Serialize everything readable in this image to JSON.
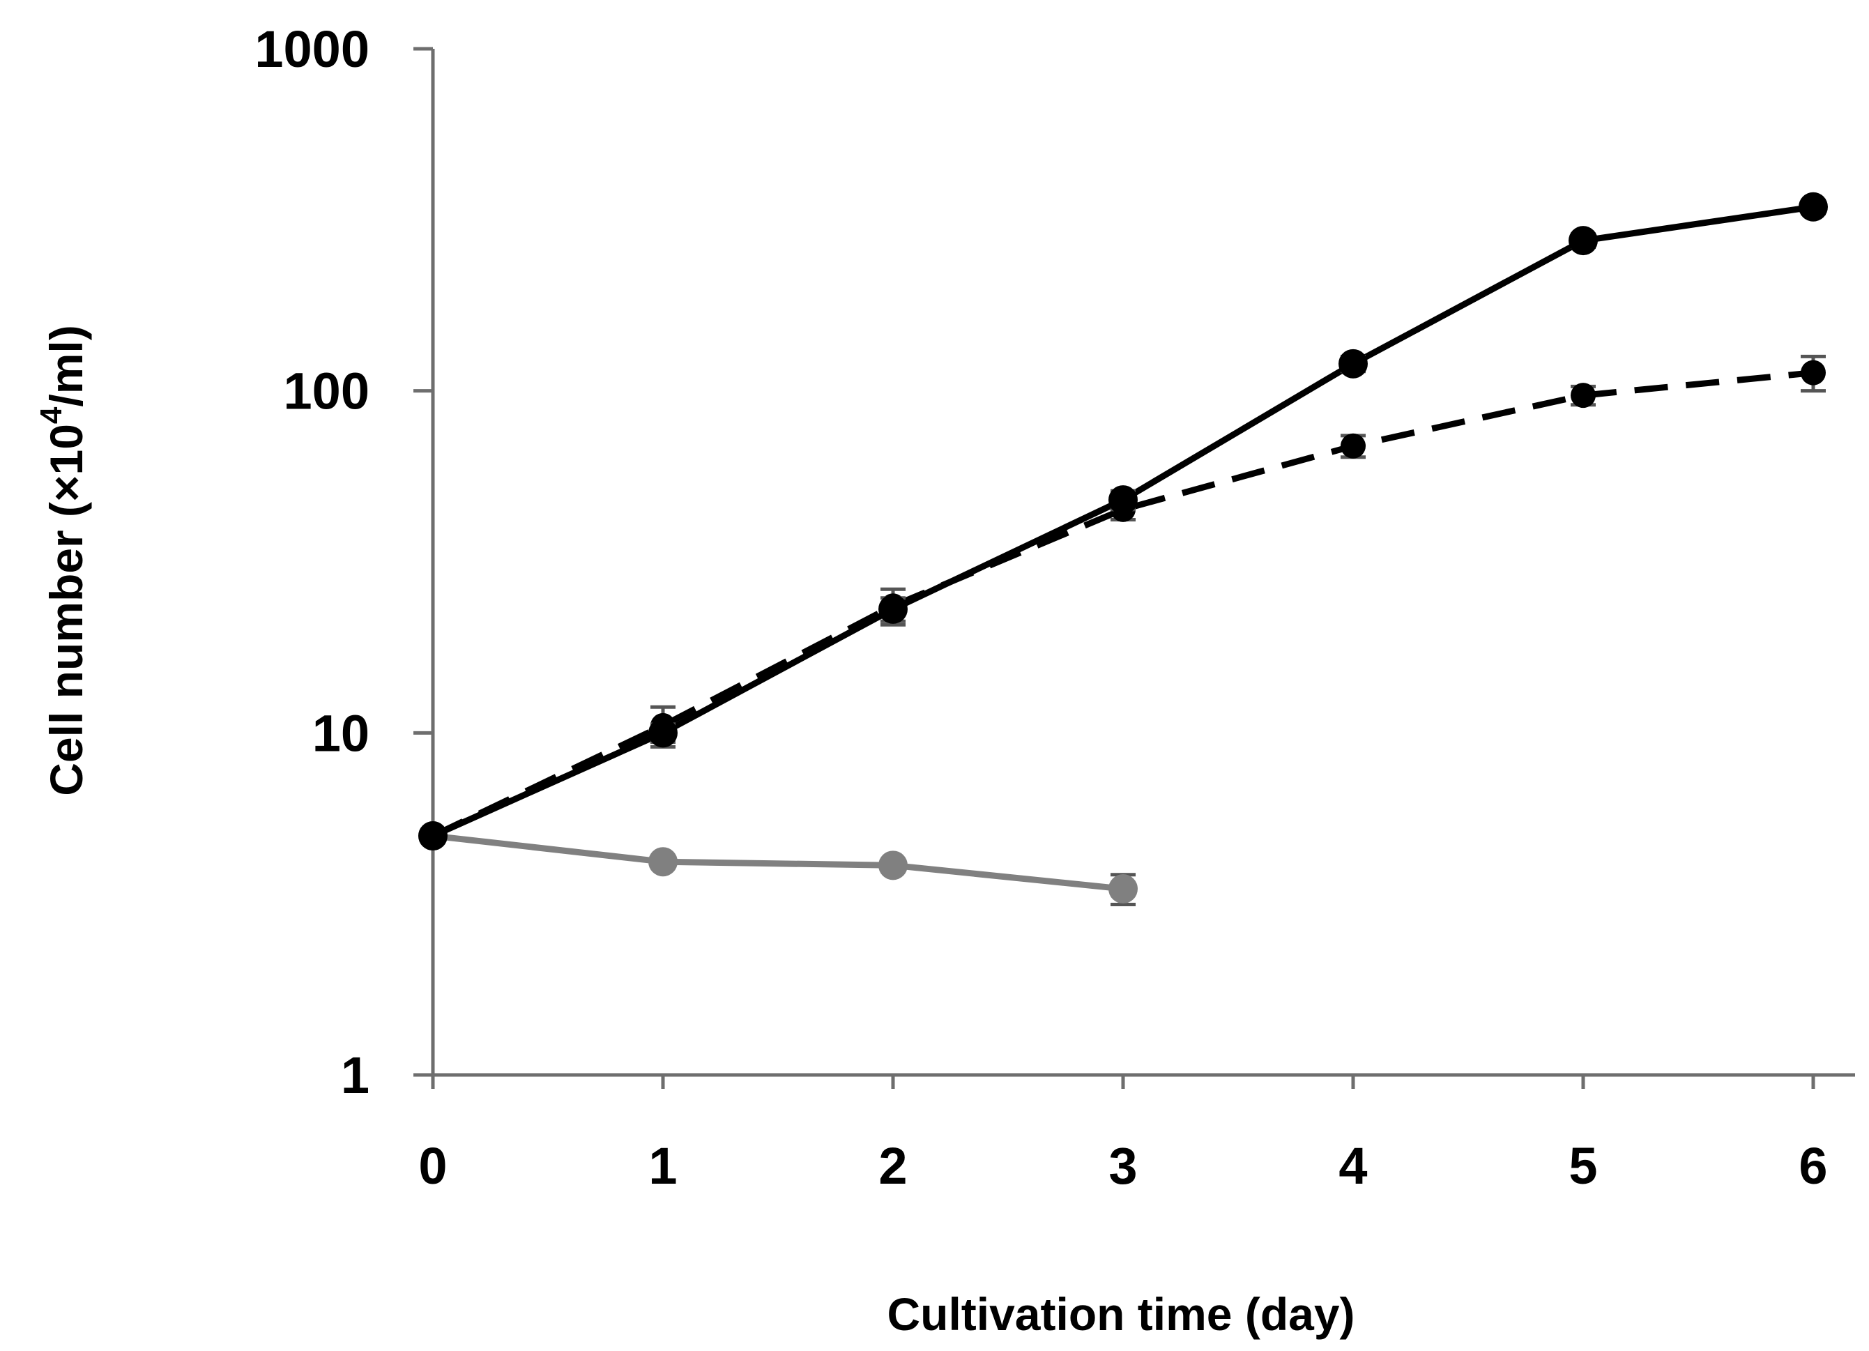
{
  "chart_data": {
    "type": "line",
    "title": "",
    "xlabel": "Cultivation time (day)",
    "ylabel": {
      "main": "Cell number (×10",
      "sup": "4",
      "tail": "/ml)"
    },
    "y_scale": "log",
    "xlim": [
      0,
      6
    ],
    "ylim": [
      1,
      1000
    ],
    "x_ticks": [
      "0",
      "1",
      "2",
      "3",
      "4",
      "5",
      "6"
    ],
    "y_ticks": [
      "1",
      "10",
      "100",
      "1000"
    ],
    "grid": false,
    "legend": "none",
    "series": [
      {
        "name": "solid-black",
        "style": "solid",
        "color": "#000000",
        "x": [
          0,
          1,
          2,
          3,
          4,
          5,
          6
        ],
        "values": [
          5,
          10,
          23,
          48,
          120,
          275,
          345
        ],
        "err": [
          0,
          0.6,
          1.8,
          3,
          6,
          12,
          15
        ]
      },
      {
        "name": "dashed-black",
        "style": "dashed",
        "color": "#000000",
        "x": [
          0,
          1,
          2,
          3,
          4,
          5,
          6
        ],
        "values": [
          5,
          10.5,
          23.5,
          45,
          69,
          97,
          113
        ],
        "err": [
          0,
          1.4,
          2.8,
          3,
          5,
          6,
          13
        ]
      },
      {
        "name": "solid-gray",
        "style": "solid",
        "color": "#808080",
        "x": [
          0,
          1,
          2,
          3
        ],
        "values": [
          5,
          4.2,
          4.1,
          3.5
        ],
        "err": [
          0,
          0.15,
          0.15,
          0.35
        ]
      }
    ]
  }
}
